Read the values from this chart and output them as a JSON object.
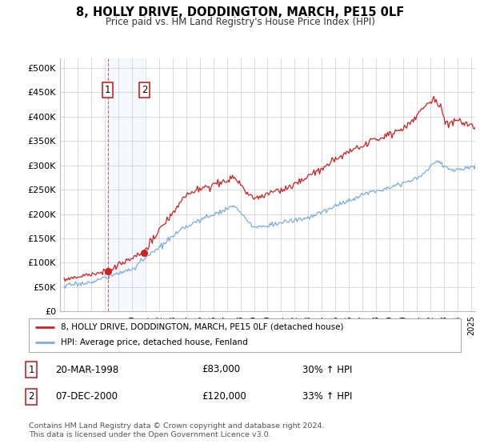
{
  "title": "8, HOLLY DRIVE, DODDINGTON, MARCH, PE15 0LF",
  "subtitle": "Price paid vs. HM Land Registry's House Price Index (HPI)",
  "ylabel_ticks": [
    "£0",
    "£50K",
    "£100K",
    "£150K",
    "£200K",
    "£250K",
    "£300K",
    "£350K",
    "£400K",
    "£450K",
    "£500K"
  ],
  "ytick_values": [
    0,
    50000,
    100000,
    150000,
    200000,
    250000,
    300000,
    350000,
    400000,
    450000,
    500000
  ],
  "ylim": [
    0,
    520000
  ],
  "xlim_start": 1994.7,
  "xlim_end": 2025.3,
  "hpi_color": "#7aace0",
  "price_color": "#cc2222",
  "sale1_date": 1998.22,
  "sale1_price": 83000,
  "sale2_date": 2000.92,
  "sale2_price": 120000,
  "sale1_label": "1",
  "sale2_label": "2",
  "legend_line1": "8, HOLLY DRIVE, DODDINGTON, MARCH, PE15 0LF (detached house)",
  "legend_line2": "HPI: Average price, detached house, Fenland",
  "table_row1_num": "1",
  "table_row1_date": "20-MAR-1998",
  "table_row1_price": "£83,000",
  "table_row1_hpi": "30% ↑ HPI",
  "table_row2_num": "2",
  "table_row2_date": "07-DEC-2000",
  "table_row2_price": "£120,000",
  "table_row2_hpi": "33% ↑ HPI",
  "footnote1": "Contains HM Land Registry data © Crown copyright and database right 2024.",
  "footnote2": "This data is licensed under the Open Government Licence v3.0.",
  "background_color": "#ffffff",
  "plot_bg_color": "#ffffff",
  "grid_color": "#cccccc",
  "shade_color": "#d0e4f7"
}
